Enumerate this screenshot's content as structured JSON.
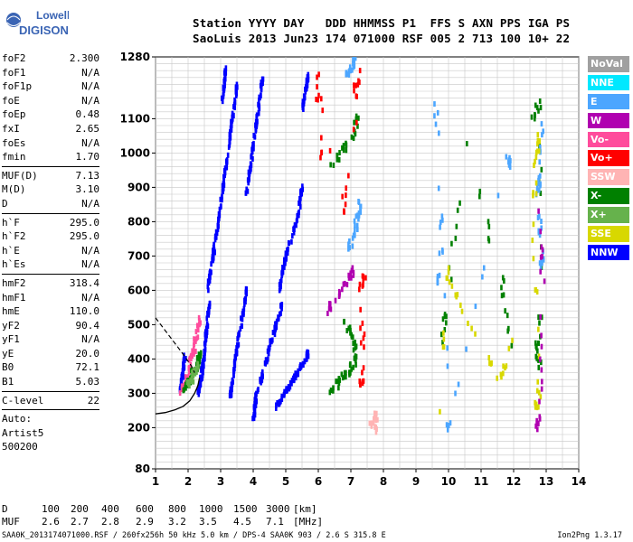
{
  "logo": {
    "top": "Lowell",
    "bottom": "DIGISONDE"
  },
  "header": {
    "line1": "Station YYYY DAY   DDD HHMMSS P1  FFS S AXN PPS IGA PS",
    "line2": "SaoLuis 2013 Jun23 174 071000 RSF 005 2 713 100 10+ 22"
  },
  "params": [
    {
      "type": "row",
      "label": "foF2",
      "value": "2.300"
    },
    {
      "type": "row",
      "label": "foF1",
      "value": "N/A"
    },
    {
      "type": "row",
      "label": "foF1p",
      "value": "N/A"
    },
    {
      "type": "row",
      "label": "foE",
      "value": "N/A"
    },
    {
      "type": "row",
      "label": "foEp",
      "value": "0.48"
    },
    {
      "type": "row",
      "label": "fxI",
      "value": "2.65"
    },
    {
      "type": "row",
      "label": "foEs",
      "value": "N/A"
    },
    {
      "type": "row",
      "label": "fmin",
      "value": "1.70"
    },
    {
      "type": "sep"
    },
    {
      "type": "row",
      "label": "MUF(D)",
      "value": "7.13"
    },
    {
      "type": "row",
      "label": "M(D)",
      "value": "3.10"
    },
    {
      "type": "row",
      "label": "D",
      "value": "N/A"
    },
    {
      "type": "sep"
    },
    {
      "type": "row",
      "label": "h`F",
      "value": "295.0"
    },
    {
      "type": "row",
      "label": "h`F2",
      "value": "295.0"
    },
    {
      "type": "row",
      "label": "h`E",
      "value": "N/A"
    },
    {
      "type": "row",
      "label": "h`Es",
      "value": "N/A"
    },
    {
      "type": "sep"
    },
    {
      "type": "row",
      "label": "hmF2",
      "value": "318.4"
    },
    {
      "type": "row",
      "label": "hmF1",
      "value": "N/A"
    },
    {
      "type": "row",
      "label": "hmE",
      "value": "110.0"
    },
    {
      "type": "row",
      "label": "yF2",
      "value": "90.4"
    },
    {
      "type": "row",
      "label": "yF1",
      "value": "N/A"
    },
    {
      "type": "row",
      "label": "yE",
      "value": "20.0"
    },
    {
      "type": "row",
      "label": "B0",
      "value": "72.1"
    },
    {
      "type": "row",
      "label": "B1",
      "value": "5.03"
    },
    {
      "type": "sep"
    },
    {
      "type": "row",
      "label": "C-level",
      "value": "22"
    },
    {
      "type": "sep"
    },
    {
      "type": "plain",
      "label": "Auto:"
    },
    {
      "type": "plain",
      "label": "Artist5"
    },
    {
      "type": "plain",
      "label": "500200"
    }
  ],
  "legend": [
    {
      "label": "NoVal",
      "color": "#a0a0a0"
    },
    {
      "label": "NNE",
      "color": "#00e8ff"
    },
    {
      "label": "E",
      "color": "#4ca6ff"
    },
    {
      "label": "W",
      "color": "#b000b0"
    },
    {
      "label": "Vo-",
      "color": "#ff4c9c"
    },
    {
      "label": "Vo+",
      "color": "#ff0000"
    },
    {
      "label": "SSW",
      "color": "#ffb4b4"
    },
    {
      "label": "X-",
      "color": "#008000"
    },
    {
      "label": "X+",
      "color": "#66b24c"
    },
    {
      "label": "SSE",
      "color": "#d8d800"
    },
    {
      "label": "NNW",
      "color": "#0000ff"
    }
  ],
  "muf_table": {
    "d_label": "D",
    "d_values": [
      "100",
      "200",
      "400",
      "600",
      "800",
      "1000",
      "1500",
      "3000"
    ],
    "d_unit": "[km]",
    "muf_label": "MUF",
    "muf_values": [
      "2.6",
      "2.7",
      "2.8",
      "2.9",
      "3.2",
      "3.5",
      "4.5",
      "7.1"
    ],
    "muf_unit": "[MHz]"
  },
  "footer": "SAA0K_2013174071000.RSF / 260fx256h 50 kHz 5.0 km / DPS-4 SAA0K 903 / 2.6 S 315.8 E",
  "version": "Ion2Png 1.3.17",
  "chart_data": {
    "type": "scatter",
    "xlim": [
      1,
      14
    ],
    "ylim": [
      80,
      1280
    ],
    "x_ticks": [
      "1",
      "2",
      "3",
      "4",
      "5",
      "6",
      "7",
      "8",
      "9",
      "10",
      "11",
      "12",
      "13",
      "14"
    ],
    "y_ticks": [
      "80",
      "200",
      "300",
      "400",
      "500",
      "600",
      "700",
      "800",
      "900",
      "1000",
      "1100",
      "1280"
    ],
    "grid": true,
    "xlabel": "",
    "ylabel": "",
    "traces": [
      {
        "color": "#0000ff",
        "points": [
          [
            2.3,
            300
          ],
          [
            2.35,
            320
          ],
          [
            2.4,
            345
          ],
          [
            2.45,
            380
          ],
          [
            2.5,
            420
          ],
          [
            2.55,
            470
          ],
          [
            2.6,
            520
          ],
          [
            2.65,
            560
          ]
        ]
      },
      {
        "color": "#0000ff",
        "points": [
          [
            2.6,
            600
          ],
          [
            2.7,
            660
          ],
          [
            2.8,
            720
          ],
          [
            2.9,
            790
          ],
          [
            3.0,
            850
          ],
          [
            3.1,
            920
          ],
          [
            3.2,
            990
          ],
          [
            3.3,
            1060
          ],
          [
            3.4,
            1130
          ],
          [
            3.5,
            1200
          ]
        ]
      },
      {
        "color": "#0000ff",
        "points": [
          [
            3.3,
            290
          ],
          [
            3.35,
            330
          ],
          [
            3.45,
            400
          ],
          [
            3.55,
            460
          ],
          [
            3.7,
            540
          ],
          [
            3.8,
            610
          ]
        ]
      },
      {
        "color": "#0000ff",
        "points": [
          [
            3.8,
            880
          ],
          [
            3.9,
            950
          ],
          [
            4.0,
            1020
          ],
          [
            4.1,
            1090
          ],
          [
            4.2,
            1160
          ],
          [
            4.3,
            1230
          ]
        ]
      },
      {
        "color": "#0000ff",
        "points": [
          [
            4.0,
            220
          ],
          [
            4.05,
            260
          ],
          [
            4.1,
            300
          ],
          [
            4.3,
            360
          ],
          [
            4.5,
            430
          ],
          [
            4.7,
            500
          ],
          [
            4.9,
            560
          ]
        ]
      },
      {
        "color": "#0000ff",
        "points": [
          [
            4.8,
            600
          ],
          [
            4.9,
            650
          ],
          [
            5.0,
            700
          ],
          [
            5.2,
            760
          ],
          [
            5.4,
            830
          ],
          [
            5.5,
            900
          ]
        ]
      },
      {
        "color": "#0000ff",
        "points": [
          [
            4.7,
            260
          ],
          [
            4.9,
            290
          ],
          [
            5.1,
            320
          ],
          [
            5.3,
            350
          ],
          [
            5.5,
            380
          ],
          [
            5.7,
            420
          ]
        ]
      },
      {
        "color": "#0000ff",
        "points": [
          [
            5.5,
            1120
          ],
          [
            5.6,
            1180
          ],
          [
            5.7,
            1230
          ]
        ]
      },
      {
        "color": "#0000ff",
        "points": [
          [
            3.05,
            1150
          ],
          [
            3.1,
            1200
          ],
          [
            3.15,
            1250
          ]
        ]
      },
      {
        "color": "#0000ff",
        "points": [
          [
            1.75,
            300
          ],
          [
            1.8,
            330
          ],
          [
            1.85,
            370
          ],
          [
            1.9,
            410
          ]
        ]
      }
    ],
    "echo_groups": [
      {
        "color": "#ff4c9c",
        "points": [
          [
            1.8,
            300
          ],
          [
            1.9,
            330
          ],
          [
            2.0,
            360
          ],
          [
            2.1,
            400
          ],
          [
            2.2,
            440
          ],
          [
            2.3,
            480
          ],
          [
            2.4,
            520
          ]
        ]
      },
      {
        "color": "#008000",
        "points": [
          [
            1.9,
            310
          ],
          [
            2.0,
            330
          ],
          [
            2.1,
            350
          ],
          [
            2.2,
            370
          ],
          [
            2.3,
            390
          ],
          [
            2.35,
            410
          ]
        ]
      },
      {
        "color": "#66b24c",
        "points": [
          [
            2.0,
            320
          ],
          [
            2.1,
            340
          ],
          [
            2.2,
            360
          ],
          [
            2.3,
            380
          ]
        ]
      },
      {
        "color": "#008000",
        "points": [
          [
            6.3,
            300
          ],
          [
            6.6,
            330
          ],
          [
            6.9,
            360
          ],
          [
            7.1,
            390
          ],
          [
            7.2,
            420
          ],
          [
            7.0,
            470
          ],
          [
            6.8,
            520
          ]
        ]
      },
      {
        "color": "#b000b0",
        "points": [
          [
            6.3,
            540
          ],
          [
            6.6,
            590
          ],
          [
            6.9,
            630
          ],
          [
            7.1,
            660
          ]
        ]
      },
      {
        "color": "#4ca6ff",
        "points": [
          [
            6.9,
            720
          ],
          [
            7.1,
            760
          ],
          [
            7.2,
            810
          ],
          [
            7.3,
            860
          ]
        ]
      },
      {
        "color": "#008000",
        "points": [
          [
            6.4,
            960
          ],
          [
            6.8,
            1010
          ],
          [
            7.1,
            1060
          ],
          [
            7.2,
            1110
          ]
        ]
      },
      {
        "color": "#4ca6ff",
        "points": [
          [
            6.8,
            1220
          ],
          [
            7.0,
            1250
          ],
          [
            7.2,
            1270
          ]
        ]
      },
      {
        "color": "#ff0000",
        "points": [
          [
            7.3,
            320
          ],
          [
            7.4,
            360
          ],
          [
            7.3,
            600
          ],
          [
            7.4,
            640
          ]
        ]
      },
      {
        "color": "#008000",
        "points": [
          [
            12.6,
            1100
          ],
          [
            12.8,
            1150
          ],
          [
            12.8,
            380
          ],
          [
            12.7,
            420
          ],
          [
            12.9,
            540
          ]
        ]
      },
      {
        "color": "#4ca6ff",
        "points": [
          [
            12.8,
            650
          ],
          [
            12.9,
            700
          ],
          [
            12.7,
            880
          ],
          [
            12.8,
            920
          ],
          [
            12.9,
            1120
          ]
        ]
      },
      {
        "color": "#d8d800",
        "points": [
          [
            12.7,
            260
          ],
          [
            12.8,
            310
          ],
          [
            12.6,
            760
          ],
          [
            12.7,
            1000
          ],
          [
            12.8,
            1060
          ]
        ]
      },
      {
        "color": "#b000b0",
        "points": [
          [
            12.7,
            200
          ],
          [
            12.8,
            230
          ],
          [
            12.9,
            620
          ],
          [
            12.8,
            840
          ]
        ]
      },
      {
        "color": "#4ca6ff",
        "points": [
          [
            9.7,
            620
          ],
          [
            9.8,
            720
          ],
          [
            9.6,
            1170
          ],
          [
            10.0,
            190
          ],
          [
            11.8,
            1000
          ],
          [
            11.9,
            950
          ]
        ]
      },
      {
        "color": "#008000",
        "points": [
          [
            9.8,
            430
          ],
          [
            9.9,
            540
          ],
          [
            10.6,
            1080
          ],
          [
            11.9,
            430
          ],
          [
            11.6,
            660
          ]
        ]
      },
      {
        "color": "#d8d800",
        "points": [
          [
            9.7,
            240
          ],
          [
            10.0,
            660
          ],
          [
            10.4,
            540
          ],
          [
            11.6,
            330
          ],
          [
            12.1,
            480
          ]
        ]
      },
      {
        "color": "#ffb4b4",
        "points": [
          [
            7.6,
            200
          ],
          [
            7.8,
            240
          ],
          [
            7.7,
            180
          ]
        ]
      },
      {
        "color": "#ff0000",
        "points": [
          [
            7.1,
            1180
          ],
          [
            7.3,
            1240
          ],
          [
            6.8,
            820
          ],
          [
            5.9,
            1250
          ],
          [
            6.2,
            870
          ]
        ]
      }
    ],
    "profile": {
      "color": "#000000",
      "points": [
        [
          1,
          240
        ],
        [
          1.3,
          244
        ],
        [
          1.6,
          252
        ],
        [
          1.85,
          262
        ],
        [
          2.05,
          278
        ],
        [
          2.2,
          300
        ],
        [
          2.3,
          322
        ],
        [
          2.35,
          345
        ]
      ]
    },
    "profile_dashed": {
      "color": "#000000",
      "points": [
        [
          1,
          520
        ],
        [
          1.4,
          470
        ],
        [
          1.8,
          420
        ],
        [
          2.1,
          380
        ],
        [
          2.2,
          360
        ]
      ]
    }
  }
}
